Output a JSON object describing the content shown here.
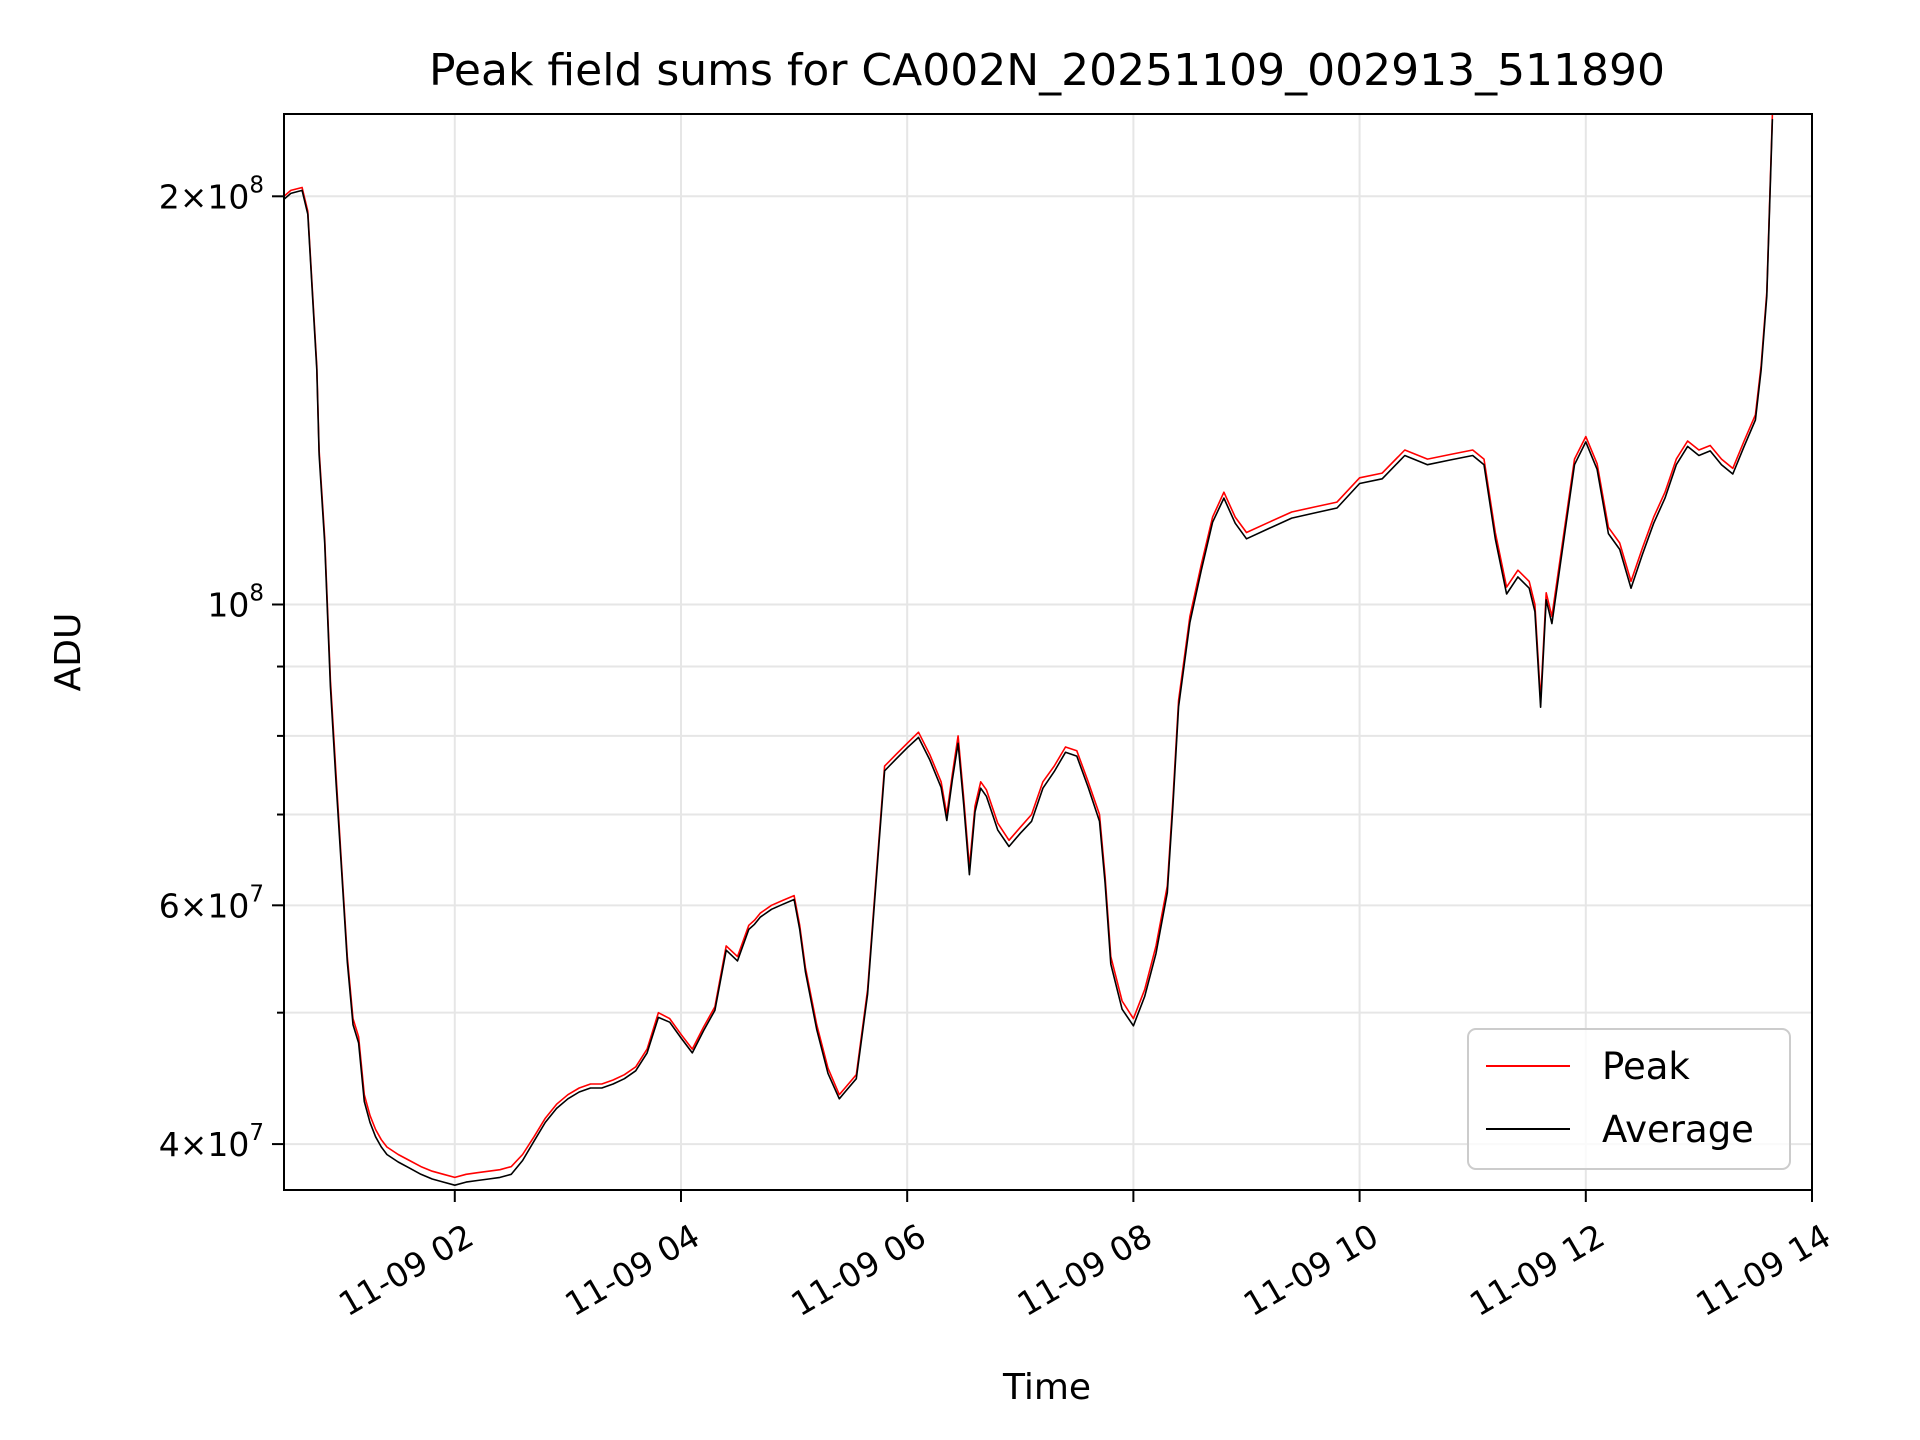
{
  "chart_data": {
    "type": "line",
    "title": "Peak field sums for CA002N_20251109_002913_511890",
    "xlabel": "Time",
    "ylabel": "ADU",
    "y_scale": "log",
    "xlim_hours": [
      0.49,
      14.0
    ],
    "ylim": [
      37000000,
      230000000
    ],
    "grid": true,
    "legend_position": "lower-right",
    "x_ticks": [
      {
        "value": 2,
        "label": "11-09 02"
      },
      {
        "value": 4,
        "label": "11-09 04"
      },
      {
        "value": 6,
        "label": "11-09 06"
      },
      {
        "value": 8,
        "label": "11-09 08"
      },
      {
        "value": 10,
        "label": "11-09 10"
      },
      {
        "value": 12,
        "label": "11-09 12"
      },
      {
        "value": 14,
        "label": "11-09 14"
      }
    ],
    "y_major_ticks": [
      {
        "value": 40000000,
        "mantissa": "4",
        "exponent": "7"
      },
      {
        "value": 60000000,
        "mantissa": "6",
        "exponent": "7"
      },
      {
        "value": 100000000,
        "mantissa": "",
        "exponent": "8"
      },
      {
        "value": 200000000,
        "mantissa": "2",
        "exponent": "8"
      }
    ],
    "y_minor_ticks": [
      50000000,
      70000000,
      80000000,
      90000000
    ],
    "series": [
      {
        "name": "Peak",
        "color": "#ff0000",
        "x_hours": [
          0.49,
          0.55,
          0.65,
          0.7,
          0.78,
          0.8,
          0.85,
          0.9,
          0.95,
          1.0,
          1.05,
          1.1,
          1.15,
          1.2,
          1.25,
          1.3,
          1.35,
          1.4,
          1.5,
          1.6,
          1.7,
          1.8,
          1.9,
          2.0,
          2.1,
          2.2,
          2.3,
          2.4,
          2.5,
          2.6,
          2.7,
          2.8,
          2.9,
          3.0,
          3.1,
          3.2,
          3.3,
          3.4,
          3.5,
          3.6,
          3.7,
          3.8,
          3.9,
          4.0,
          4.1,
          4.2,
          4.3,
          4.4,
          4.5,
          4.6,
          4.65,
          4.7,
          4.8,
          4.9,
          5.0,
          5.05,
          5.1,
          5.2,
          5.3,
          5.4,
          5.45,
          5.55,
          5.65,
          5.75,
          5.8,
          5.9,
          6.0,
          6.1,
          6.2,
          6.3,
          6.35,
          6.4,
          6.45,
          6.5,
          6.55,
          6.6,
          6.65,
          6.7,
          6.75,
          6.8,
          6.9,
          7.0,
          7.1,
          7.2,
          7.3,
          7.4,
          7.5,
          7.6,
          7.7,
          7.75,
          7.8,
          7.9,
          8.0,
          8.1,
          8.2,
          8.3,
          8.35,
          8.4,
          8.5,
          8.6,
          8.7,
          8.8,
          8.9,
          9.0,
          9.2,
          9.4,
          9.6,
          9.8,
          10.0,
          10.2,
          10.4,
          10.6,
          10.8,
          11.0,
          11.1,
          11.2,
          11.3,
          11.4,
          11.5,
          11.55,
          11.6,
          11.65,
          11.7,
          11.8,
          11.9,
          12.0,
          12.1,
          12.2,
          12.3,
          12.4,
          12.5,
          12.6,
          12.7,
          12.8,
          12.9,
          13.0,
          13.1,
          13.2,
          13.3,
          13.4,
          13.5,
          13.55,
          13.6,
          13.65
        ],
        "values": [
          200000000,
          202000000,
          203000000,
          195000000,
          150000000,
          130000000,
          112000000,
          88000000,
          75000000,
          64000000,
          55000000,
          49500000,
          48000000,
          43500000,
          42000000,
          41000000,
          40300000,
          39800000,
          39300000,
          38900000,
          38500000,
          38200000,
          38000000,
          37800000,
          38000000,
          38100000,
          38200000,
          38300000,
          38500000,
          39300000,
          40500000,
          41800000,
          42800000,
          43500000,
          44000000,
          44300000,
          44300000,
          44600000,
          45000000,
          45600000,
          47000000,
          50000000,
          49500000,
          48200000,
          47000000,
          48800000,
          50500000,
          56000000,
          55000000,
          58000000,
          58500000,
          59200000,
          60000000,
          60500000,
          61000000,
          58000000,
          54000000,
          49000000,
          45500000,
          43500000,
          44000000,
          45000000,
          52000000,
          67000000,
          76000000,
          77500000,
          79000000,
          80500000,
          77500000,
          74000000,
          70000000,
          75000000,
          80000000,
          72000000,
          64000000,
          71000000,
          74000000,
          73000000,
          71000000,
          69000000,
          67000000,
          68500000,
          70000000,
          74000000,
          76000000,
          78500000,
          78000000,
          74000000,
          70000000,
          63000000,
          55000000,
          51000000,
          49500000,
          52000000,
          56000000,
          62000000,
          72000000,
          85000000,
          98000000,
          107000000,
          116000000,
          121000000,
          116000000,
          113000000,
          115000000,
          117000000,
          118000000,
          119000000,
          124000000,
          125000000,
          130000000,
          128000000,
          129000000,
          130000000,
          128000000,
          113000000,
          103000000,
          106000000,
          104000000,
          100000000,
          85000000,
          102000000,
          98000000,
          112000000,
          128000000,
          133000000,
          127000000,
          114000000,
          111000000,
          104000000,
          110000000,
          116000000,
          121000000,
          128000000,
          132000000,
          130000000,
          131000000,
          128000000,
          126000000,
          132000000,
          138000000,
          150000000,
          170000000,
          230000000
        ]
      },
      {
        "name": "Average",
        "color": "#000000",
        "x_hours": [
          0.49,
          0.55,
          0.65,
          0.7,
          0.78,
          0.8,
          0.85,
          0.9,
          0.95,
          1.0,
          1.05,
          1.1,
          1.15,
          1.2,
          1.25,
          1.3,
          1.35,
          1.4,
          1.5,
          1.6,
          1.7,
          1.8,
          1.9,
          2.0,
          2.1,
          2.2,
          2.3,
          2.4,
          2.5,
          2.6,
          2.7,
          2.8,
          2.9,
          3.0,
          3.1,
          3.2,
          3.3,
          3.4,
          3.5,
          3.6,
          3.7,
          3.8,
          3.9,
          4.0,
          4.1,
          4.2,
          4.3,
          4.4,
          4.5,
          4.6,
          4.65,
          4.7,
          4.8,
          4.9,
          5.0,
          5.05,
          5.1,
          5.2,
          5.3,
          5.4,
          5.45,
          5.55,
          5.65,
          5.75,
          5.8,
          5.9,
          6.0,
          6.1,
          6.2,
          6.3,
          6.35,
          6.4,
          6.45,
          6.5,
          6.55,
          6.6,
          6.65,
          6.7,
          6.75,
          6.8,
          6.9,
          7.0,
          7.1,
          7.2,
          7.3,
          7.4,
          7.5,
          7.6,
          7.7,
          7.75,
          7.8,
          7.9,
          8.0,
          8.1,
          8.2,
          8.3,
          8.35,
          8.4,
          8.5,
          8.6,
          8.7,
          8.8,
          8.9,
          9.0,
          9.2,
          9.4,
          9.6,
          9.8,
          10.0,
          10.2,
          10.4,
          10.6,
          10.8,
          11.0,
          11.1,
          11.2,
          11.3,
          11.4,
          11.5,
          11.55,
          11.6,
          11.65,
          11.7,
          11.8,
          11.9,
          12.0,
          12.1,
          12.2,
          12.3,
          12.4,
          12.5,
          12.6,
          12.7,
          12.8,
          12.9,
          13.0,
          13.1,
          13.2,
          13.3,
          13.4,
          13.5,
          13.55,
          13.6,
          13.65
        ],
        "values": [
          199000000,
          201000000,
          202000000,
          194000000,
          149000000,
          129000000,
          111000000,
          87000000,
          74000000,
          63500000,
          54500000,
          49000000,
          47500000,
          43000000,
          41500000,
          40500000,
          39800000,
          39300000,
          38800000,
          38400000,
          38000000,
          37700000,
          37500000,
          37300000,
          37500000,
          37600000,
          37700000,
          37800000,
          38000000,
          38900000,
          40200000,
          41500000,
          42500000,
          43200000,
          43700000,
          44000000,
          44000000,
          44300000,
          44700000,
          45300000,
          46700000,
          49600000,
          49200000,
          47900000,
          46700000,
          48500000,
          50200000,
          55600000,
          54600000,
          57600000,
          58100000,
          58800000,
          59600000,
          60100000,
          60600000,
          57600000,
          53600000,
          48600000,
          45100000,
          43200000,
          43700000,
          44700000,
          51600000,
          66500000,
          75400000,
          76900000,
          78400000,
          79800000,
          76800000,
          73300000,
          69300000,
          74300000,
          79000000,
          71200000,
          63200000,
          70300000,
          73200000,
          72200000,
          70200000,
          68200000,
          66300000,
          67800000,
          69200000,
          73200000,
          75300000,
          77800000,
          77300000,
          73300000,
          69200000,
          62300000,
          54300000,
          50300000,
          48900000,
          51400000,
          55300000,
          61300000,
          71200000,
          84100000,
          97000000,
          106000000,
          115000000,
          119800000,
          114800000,
          111800000,
          113800000,
          115800000,
          116800000,
          117800000,
          122800000,
          123800000,
          128800000,
          126800000,
          127800000,
          128800000,
          126800000,
          111800000,
          101800000,
          104800000,
          102800000,
          98800000,
          84000000,
          100800000,
          96800000,
          110800000,
          126800000,
          131800000,
          125800000,
          112800000,
          109800000,
          102800000,
          108800000,
          114800000,
          119800000,
          126800000,
          130800000,
          128800000,
          129800000,
          126800000,
          124800000,
          130800000,
          136800000,
          148800000,
          168800000,
          228000000
        ]
      }
    ]
  }
}
